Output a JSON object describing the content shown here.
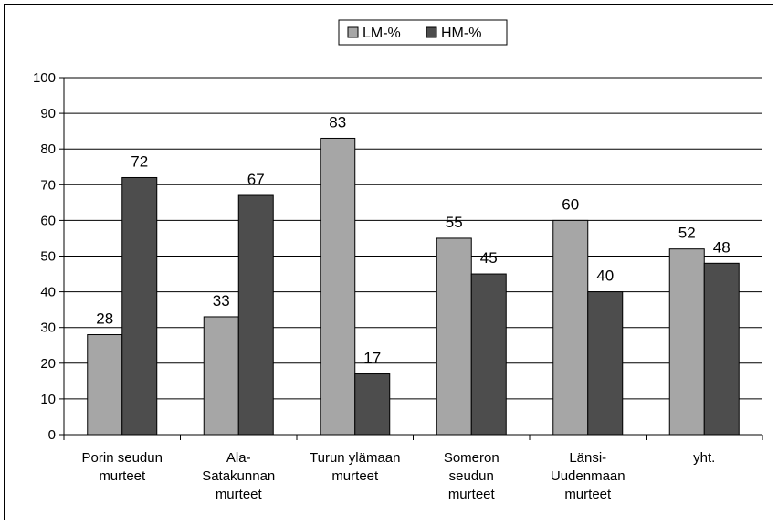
{
  "chart_data": {
    "type": "bar",
    "title": "",
    "xlabel": "",
    "ylabel": "",
    "categories": [
      [
        "Porin seudun",
        "murteet"
      ],
      [
        "Ala-",
        "Satakunnan",
        "murteet"
      ],
      [
        "Turun ylämaan",
        "murteet"
      ],
      [
        "Someron",
        "seudun",
        "murteet"
      ],
      [
        "Länsi-",
        "Uudenmaan",
        "murteet"
      ],
      [
        "yht."
      ]
    ],
    "series": [
      {
        "name": "LM-%",
        "values": [
          28,
          33,
          83,
          55,
          60,
          52
        ],
        "color": "#a6a6a6"
      },
      {
        "name": "HM-%",
        "values": [
          72,
          67,
          17,
          45,
          40,
          48
        ],
        "color": "#4d4d4d"
      }
    ],
    "ylim": [
      0,
      100
    ],
    "yticks": [
      0,
      10,
      20,
      30,
      40,
      50,
      60,
      70,
      80,
      90,
      100
    ],
    "grid": true,
    "legend_position": "top-center",
    "data_labels": true
  }
}
